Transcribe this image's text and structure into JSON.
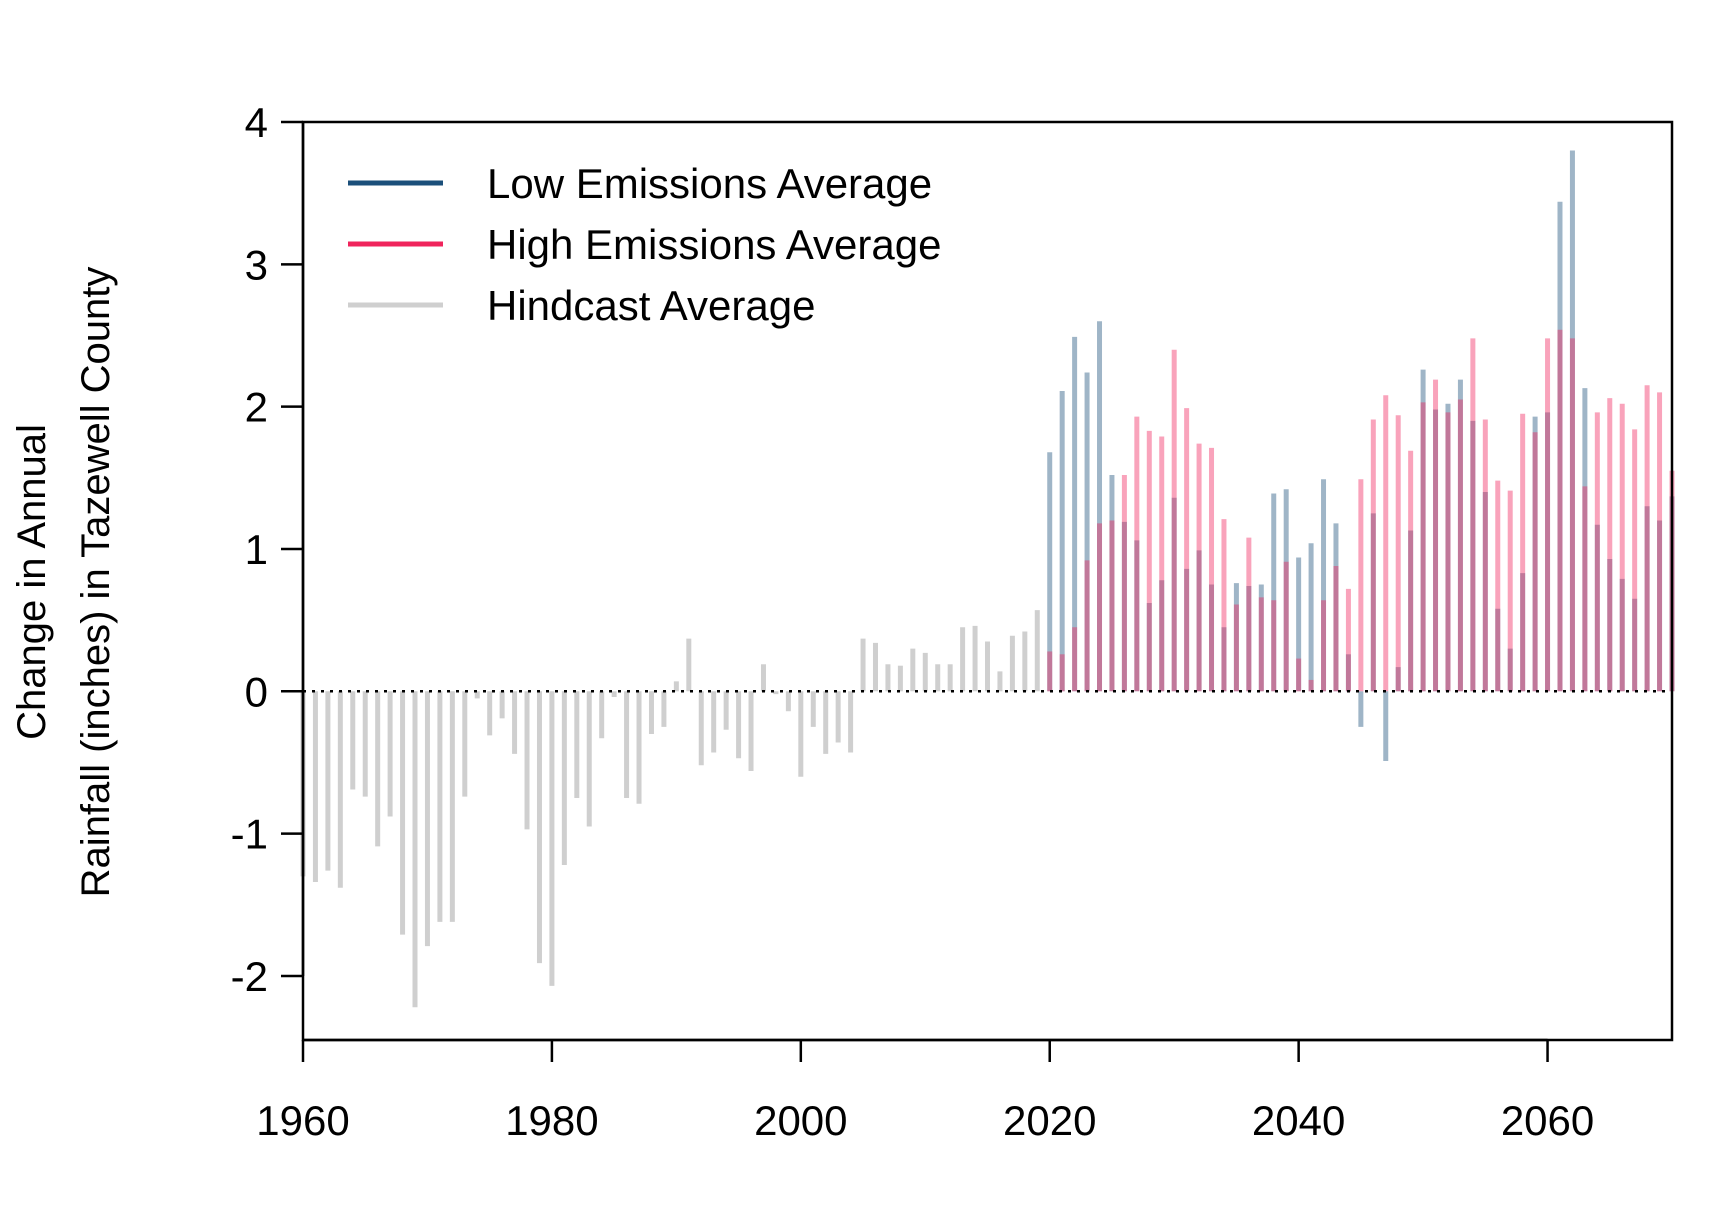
{
  "chart_data": {
    "type": "bar",
    "title": "",
    "xlabel": "",
    "ylabel_lines": [
      "Change in Annual",
      "Rainfall (inches) in Tazewell County"
    ],
    "xlim": [
      1960,
      2070
    ],
    "ylim": [
      -2.45,
      4
    ],
    "x_ticks": [
      1960,
      1980,
      2000,
      2020,
      2040,
      2060
    ],
    "y_ticks": [
      -2,
      -1,
      0,
      1,
      2,
      3,
      4
    ],
    "reference_line": 0,
    "grid": false,
    "legend_position": "top-left",
    "series": [
      {
        "name": "Low Emissions Average",
        "color": "#1b4f7a",
        "x": [
          2020,
          2021,
          2022,
          2023,
          2024,
          2025,
          2026,
          2027,
          2028,
          2029,
          2030,
          2031,
          2032,
          2033,
          2034,
          2035,
          2036,
          2037,
          2038,
          2039,
          2040,
          2041,
          2042,
          2043,
          2044,
          2045,
          2046,
          2047,
          2048,
          2049,
          2050,
          2051,
          2052,
          2053,
          2054,
          2055,
          2056,
          2057,
          2058,
          2059,
          2060,
          2061,
          2062,
          2063,
          2064,
          2065,
          2066,
          2067,
          2068,
          2069,
          2070
        ],
        "values": [
          1.68,
          2.11,
          2.49,
          2.24,
          2.6,
          1.52,
          1.19,
          1.06,
          0.62,
          0.78,
          1.36,
          0.86,
          0.99,
          0.75,
          0.45,
          0.76,
          0.74,
          0.75,
          1.39,
          1.42,
          0.94,
          1.04,
          1.49,
          1.18,
          0.26,
          -0.25,
          1.25,
          -0.49,
          0.17,
          1.13,
          2.26,
          1.98,
          2.02,
          2.19,
          1.9,
          1.4,
          0.58,
          0.3,
          0.83,
          1.93,
          1.96,
          3.44,
          3.8,
          2.13,
          1.17,
          0.93,
          0.79,
          0.65,
          1.3,
          1.2,
          1.37
        ]
      },
      {
        "name": "High Emissions Average",
        "color": "#f0245c",
        "x": [
          2020,
          2021,
          2022,
          2023,
          2024,
          2025,
          2026,
          2027,
          2028,
          2029,
          2030,
          2031,
          2032,
          2033,
          2034,
          2035,
          2036,
          2037,
          2038,
          2039,
          2040,
          2041,
          2042,
          2043,
          2044,
          2045,
          2046,
          2047,
          2048,
          2049,
          2050,
          2051,
          2052,
          2053,
          2054,
          2055,
          2056,
          2057,
          2058,
          2059,
          2060,
          2061,
          2062,
          2063,
          2064,
          2065,
          2066,
          2067,
          2068,
          2069,
          2070
        ],
        "values": [
          0.28,
          0.26,
          0.45,
          0.92,
          1.18,
          1.2,
          1.52,
          1.93,
          1.83,
          1.79,
          2.4,
          1.99,
          1.74,
          1.71,
          1.21,
          0.61,
          1.08,
          0.66,
          0.64,
          0.91,
          0.23,
          0.08,
          0.64,
          0.88,
          0.72,
          1.49,
          1.91,
          2.08,
          1.94,
          1.69,
          2.03,
          2.19,
          1.96,
          2.05,
          2.48,
          1.91,
          1.48,
          1.41,
          1.95,
          1.82,
          2.48,
          2.54,
          2.48,
          1.44,
          1.96,
          2.06,
          2.02,
          1.84,
          2.15,
          2.1,
          1.55
        ]
      },
      {
        "name": "Hindcast Average",
        "color": "#cfcfcf",
        "x": [
          1960,
          1961,
          1962,
          1963,
          1964,
          1965,
          1966,
          1967,
          1968,
          1969,
          1970,
          1971,
          1972,
          1973,
          1974,
          1975,
          1976,
          1977,
          1978,
          1979,
          1980,
          1981,
          1982,
          1983,
          1984,
          1985,
          1986,
          1987,
          1988,
          1989,
          1990,
          1991,
          1992,
          1993,
          1994,
          1995,
          1996,
          1997,
          1998,
          1999,
          2000,
          2001,
          2002,
          2003,
          2004,
          2005,
          2006,
          2007,
          2008,
          2009,
          2010,
          2011,
          2012,
          2013,
          2014,
          2015,
          2016,
          2017,
          2018,
          2019
        ],
        "values": [
          -1.3,
          -1.34,
          -1.26,
          -1.38,
          -0.69,
          -0.74,
          -1.09,
          -0.88,
          -1.71,
          -2.22,
          -1.79,
          -1.62,
          -1.62,
          -0.74,
          -0.05,
          -0.31,
          -0.19,
          -0.44,
          -0.97,
          -1.91,
          -2.07,
          -1.22,
          -0.75,
          -0.95,
          -0.33,
          -0.04,
          -0.75,
          -0.79,
          -0.3,
          -0.25,
          0.07,
          0.37,
          -0.52,
          -0.43,
          -0.27,
          -0.47,
          -0.56,
          0.19,
          -0.02,
          -0.14,
          -0.6,
          -0.25,
          -0.44,
          -0.36,
          -0.43,
          0.37,
          0.34,
          0.19,
          0.18,
          0.3,
          0.27,
          0.19,
          0.19,
          0.45,
          0.46,
          0.35,
          0.14,
          0.39,
          0.42,
          0.57
        ]
      }
    ]
  }
}
